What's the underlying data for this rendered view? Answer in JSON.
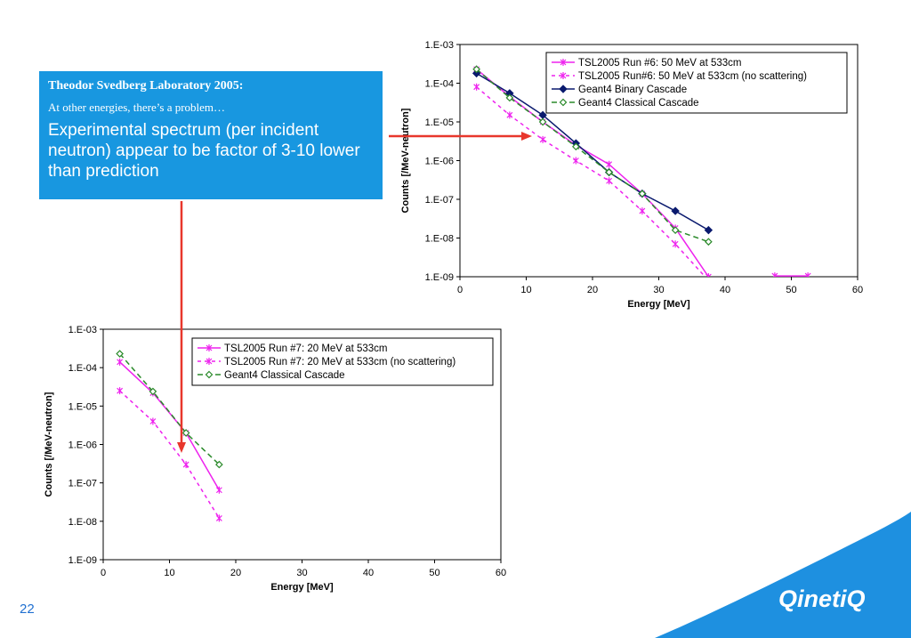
{
  "callout": {
    "heading": "Theodor Svedberg Laboratory 2005:",
    "subheading": "At other energies, there’s a problem…",
    "body": "Experimental spectrum (per incident neutron) appear to be factor of 3-10 lower than prediction"
  },
  "page_number": "22",
  "logo_text": "QinetiQ",
  "colors": {
    "callout_bg": "#1897e0",
    "arrow": "#e8372c",
    "magenta": "#ee22ee",
    "navy": "#0a1a6e",
    "green": "#2a8a2a",
    "brand_wave": "#1e90e0"
  },
  "chart_data": [
    {
      "type": "line",
      "xlabel": "Energy [MeV]",
      "ylabel": "Counts [/MeV-neutron]",
      "xlim": [
        0,
        60
      ],
      "ylim": [
        1e-09,
        0.001
      ],
      "log_y": true,
      "xticks": [
        "0",
        "10",
        "20",
        "30",
        "40",
        "50",
        "60"
      ],
      "yticks": [
        "1.E-09",
        "1.E-08",
        "1.E-07",
        "1.E-06",
        "1.E-05",
        "1.E-04",
        "1.E-03"
      ],
      "legend_position": "top-right",
      "grid": false,
      "series": [
        {
          "name": "TSL2005 Run #6: 50 MeV at 533cm",
          "color": "#ee22ee",
          "dash": "",
          "marker": "star",
          "x": [
            2.5,
            7.5,
            12.5,
            17.5,
            22.5,
            27.5,
            32.5,
            37.5
          ],
          "y": [
            0.00023,
            4.5e-05,
            1e-05,
            2.5e-06,
            8e-07,
            1.4e-07,
            1.8e-08,
            1e-09
          ]
        },
        {
          "name": "TSL2005 Run #6: 50 MeV at 533cm",
          "color": "#ee22ee",
          "dash": "",
          "marker": "star",
          "x": [
            47.5,
            52.5
          ],
          "y": [
            1.05e-09,
            1.05e-09
          ]
        },
        {
          "name": "TSL2005 Run#6: 50 MeV at 533cm (no scattering)",
          "color": "#ee22ee",
          "dash": "4,4",
          "marker": "star",
          "x": [
            2.5,
            7.5,
            12.5,
            17.5,
            22.5,
            27.5,
            32.5,
            37.5
          ],
          "y": [
            8e-05,
            1.5e-05,
            3.5e-06,
            1e-06,
            3e-07,
            5e-08,
            7e-09,
            8e-10
          ]
        },
        {
          "name": "Geant4 Binary Cascade",
          "color": "#0a1a6e",
          "dash": "",
          "marker": "diamond",
          "x": [
            2.5,
            7.5,
            12.5,
            17.5,
            22.5,
            27.5,
            32.5,
            37.5
          ],
          "y": [
            0.00018,
            5.5e-05,
            1.5e-05,
            2.8e-06,
            5e-07,
            1.4e-07,
            5e-08,
            1.6e-08
          ]
        },
        {
          "name": "Geant4 Classical Cascade",
          "color": "#2a8a2a",
          "dash": "6,4",
          "marker": "diamond-open",
          "x": [
            2.5,
            7.5,
            12.5,
            17.5,
            22.5,
            27.5,
            32.5,
            37.5
          ],
          "y": [
            0.00023,
            4.2e-05,
            1e-05,
            2.3e-06,
            5e-07,
            1.4e-07,
            1.6e-08,
            8e-09
          ]
        }
      ],
      "legend": [
        "TSL2005 Run #6: 50 MeV at 533cm",
        "TSL2005 Run#6: 50 MeV at 533cm (no scattering)",
        "Geant4 Binary Cascade",
        "Geant4 Classical Cascade"
      ]
    },
    {
      "type": "line",
      "xlabel": "Energy [MeV]",
      "ylabel": "Counts [/MeV-neutron]",
      "xlim": [
        0,
        60
      ],
      "ylim": [
        1e-09,
        0.001
      ],
      "log_y": true,
      "xticks": [
        "0",
        "10",
        "20",
        "30",
        "40",
        "50",
        "60"
      ],
      "yticks": [
        "1.E-09",
        "1.E-08",
        "1.E-07",
        "1.E-06",
        "1.E-05",
        "1.E-04",
        "1.E-03"
      ],
      "legend_position": "top-right",
      "grid": false,
      "series": [
        {
          "name": "TSL2005 Run #7: 20 MeV at 533cm",
          "color": "#ee22ee",
          "dash": "",
          "marker": "star",
          "x": [
            2.5,
            7.5,
            12.5,
            17.5
          ],
          "y": [
            0.00014,
            2.2e-05,
            2e-06,
            6.5e-08
          ]
        },
        {
          "name": "TSL2005 Run #7: 20 MeV at 533cm (no scattering)",
          "color": "#ee22ee",
          "dash": "4,4",
          "marker": "star",
          "x": [
            2.5,
            7.5,
            12.5,
            17.5
          ],
          "y": [
            2.5e-05,
            4e-06,
            3e-07,
            1.2e-08
          ]
        },
        {
          "name": "Geant4 Classical Cascade",
          "color": "#2a8a2a",
          "dash": "6,4",
          "marker": "diamond-open",
          "x": [
            2.5,
            7.5,
            12.5,
            17.5
          ],
          "y": [
            0.00023,
            2.4e-05,
            2e-06,
            3e-07
          ]
        }
      ],
      "legend": [
        "TSL2005 Run #7: 20 MeV at 533cm",
        "TSL2005 Run #7: 20 MeV at 533cm (no scattering)",
        "Geant4 Classical Cascade"
      ]
    }
  ]
}
